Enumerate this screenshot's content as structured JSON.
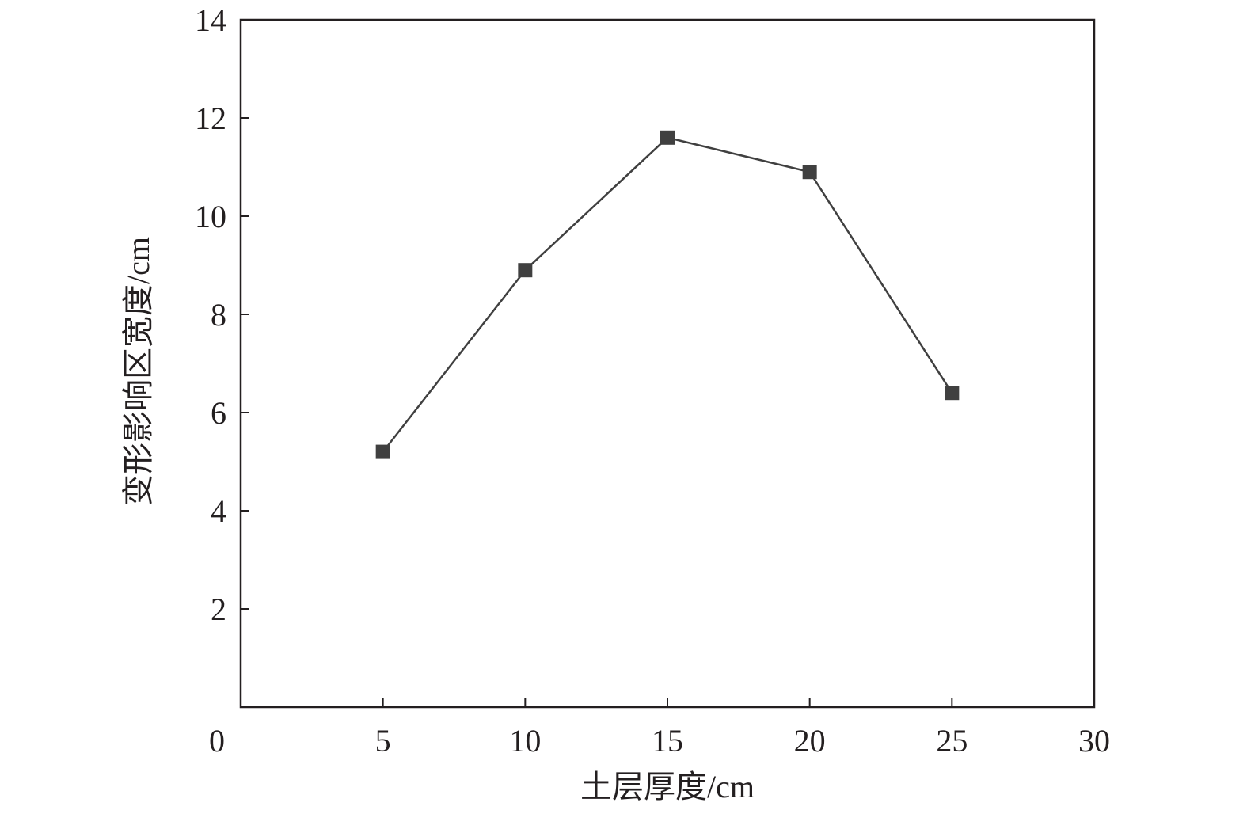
{
  "chart_data": {
    "type": "line",
    "xlabel": "土层厚度/cm",
    "ylabel": "变形影响区宽度/cm",
    "xlim": [
      0,
      30
    ],
    "ylim": [
      0,
      14
    ],
    "x_ticks": [
      0,
      5,
      10,
      15,
      20,
      25,
      30
    ],
    "y_ticks": [
      2,
      4,
      6,
      8,
      10,
      12,
      14
    ],
    "x_tick_labels": [
      "0",
      "5",
      "10",
      "15",
      "20",
      "25",
      "30"
    ],
    "y_tick_labels": [
      "2",
      "4",
      "6",
      "8",
      "10",
      "12",
      "14"
    ],
    "grid": false,
    "series": [
      {
        "x": [
          5,
          10,
          15,
          20,
          25
        ],
        "values": [
          5.2,
          8.9,
          11.6,
          10.9,
          6.4
        ],
        "marker": "square",
        "color": "#404040"
      }
    ],
    "colors": {
      "axis": "#231f20",
      "series": "#404040"
    }
  }
}
